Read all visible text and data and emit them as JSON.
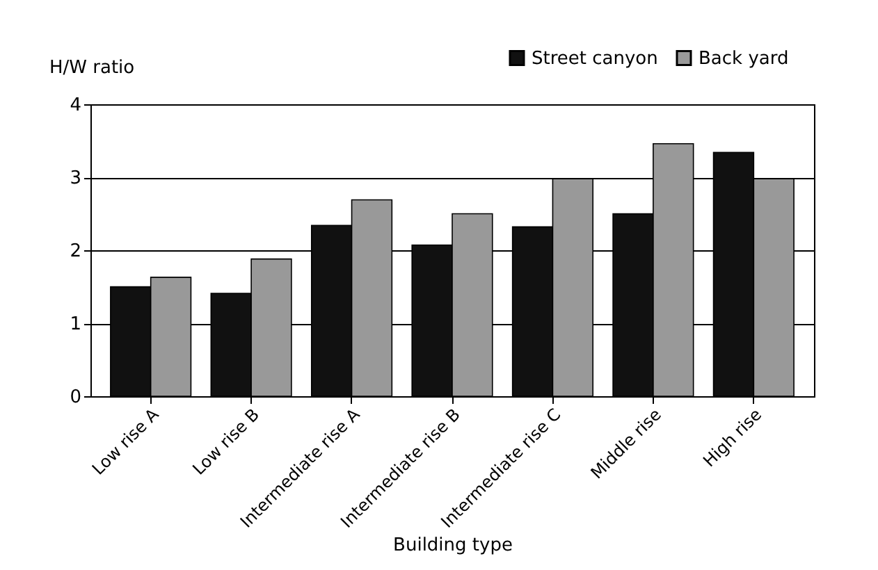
{
  "chart_data": {
    "type": "bar",
    "xlabel": "Building type",
    "ylabel": "H/W ratio",
    "categories": [
      "Low rise A",
      "Low rise B",
      "Intermediate rise A",
      "Intermediate rise B",
      "Intermediate rise C",
      "Middle rise",
      "High rise"
    ],
    "series": [
      {
        "name": "Street canyon",
        "color": "#111111",
        "values": [
          1.5,
          1.41,
          2.34,
          2.07,
          2.32,
          2.5,
          3.34
        ]
      },
      {
        "name": "Back yard",
        "color": "#999999",
        "values": [
          1.63,
          1.88,
          2.69,
          2.5,
          2.98,
          3.46,
          2.98
        ]
      }
    ],
    "ylim": [
      0,
      4
    ],
    "yticks": [
      0,
      1,
      2,
      3,
      4
    ],
    "grid": "y",
    "legend": "top right"
  }
}
